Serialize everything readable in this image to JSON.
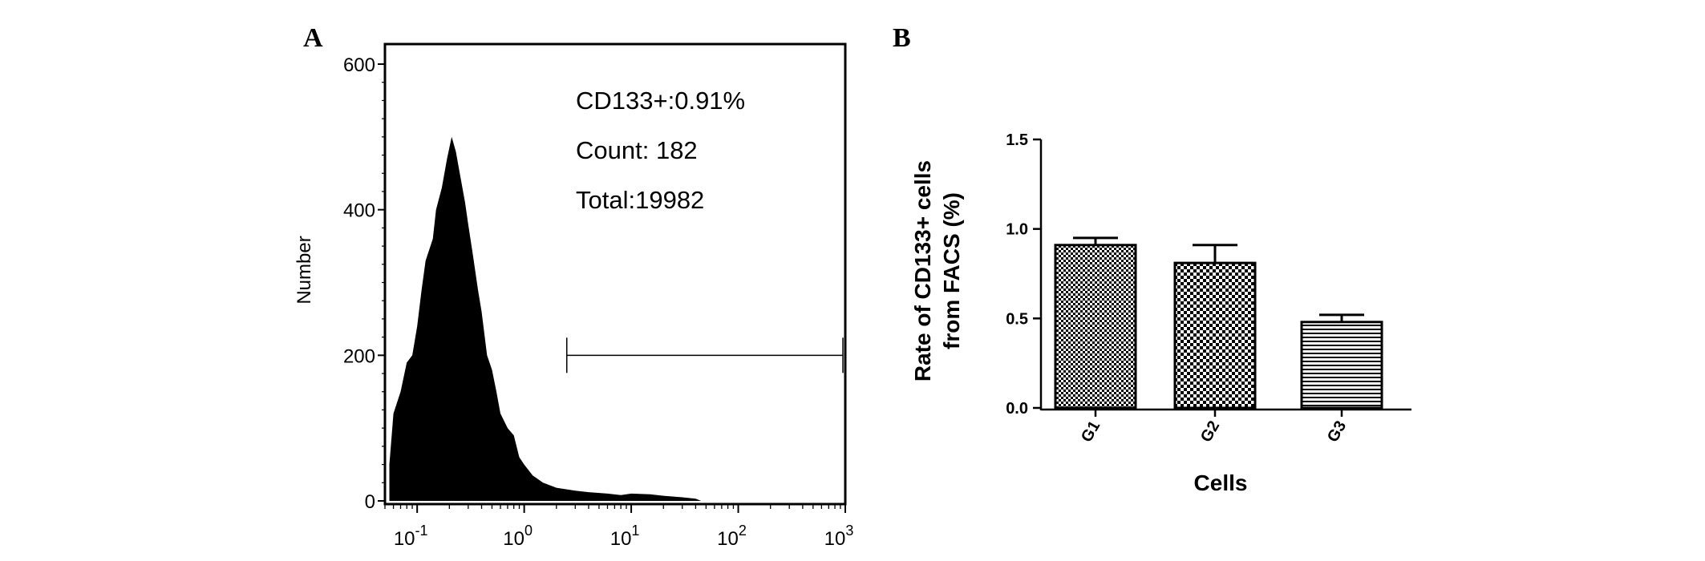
{
  "panels": {
    "a_letter": "A",
    "b_letter": "B"
  },
  "chart_data": [
    {
      "type": "area",
      "panel": "A",
      "ylabel": "Number",
      "xlabel": "",
      "x_scale": "log",
      "xlim": [
        0.05,
        1000
      ],
      "ylim": [
        0,
        600
      ],
      "y_ticks": [
        0,
        200,
        400,
        600
      ],
      "x_tick_labels": [
        {
          "base": "10",
          "exp": "-1",
          "value": 0.1
        },
        {
          "base": "10",
          "exp": "0",
          "value": 1
        },
        {
          "base": "10",
          "exp": "1",
          "value": 10
        },
        {
          "base": "10",
          "exp": "2",
          "value": 100
        },
        {
          "base": "10",
          "exp": "3",
          "value": 1000
        }
      ],
      "histogram": {
        "x": [
          0.055,
          0.06,
          0.07,
          0.08,
          0.09,
          0.1,
          0.11,
          0.12,
          0.14,
          0.15,
          0.17,
          0.19,
          0.21,
          0.23,
          0.25,
          0.28,
          0.3,
          0.33,
          0.37,
          0.4,
          0.45,
          0.5,
          0.55,
          0.6,
          0.7,
          0.8,
          0.9,
          1.0,
          1.2,
          1.5,
          2,
          3,
          4,
          6,
          8,
          10,
          15,
          20,
          30,
          40,
          45
        ],
        "y": [
          50,
          120,
          150,
          190,
          200,
          240,
          290,
          330,
          360,
          400,
          430,
          470,
          500,
          480,
          450,
          410,
          380,
          340,
          290,
          260,
          200,
          180,
          150,
          120,
          100,
          90,
          60,
          50,
          35,
          25,
          18,
          14,
          12,
          10,
          8,
          10,
          9,
          7,
          5,
          3,
          0
        ]
      },
      "gate": {
        "x_start": 2.5,
        "x_end": 950,
        "y": 200
      },
      "annotations": [
        "CD133+:0.91%",
        "Count: 182",
        "Total:19982"
      ]
    },
    {
      "type": "bar",
      "panel": "B",
      "title": "",
      "categories": [
        "G1",
        "G2",
        "G3"
      ],
      "values": [
        0.91,
        0.81,
        0.48
      ],
      "errors": [
        0.04,
        0.1,
        0.04
      ],
      "patterns": [
        "checker-fine",
        "checker-coarse",
        "horizontal-lines"
      ],
      "ylabel_line1": "Rate of CD133+ cells",
      "ylabel_line2": "from FACS (%)",
      "xlabel": "Cells",
      "ylim": [
        0,
        1.5
      ],
      "y_tick_labels": [
        "0.0",
        "0.5",
        "1.0",
        "1.5"
      ],
      "y_ticks": [
        0,
        0.5,
        1.0,
        1.5
      ]
    }
  ]
}
